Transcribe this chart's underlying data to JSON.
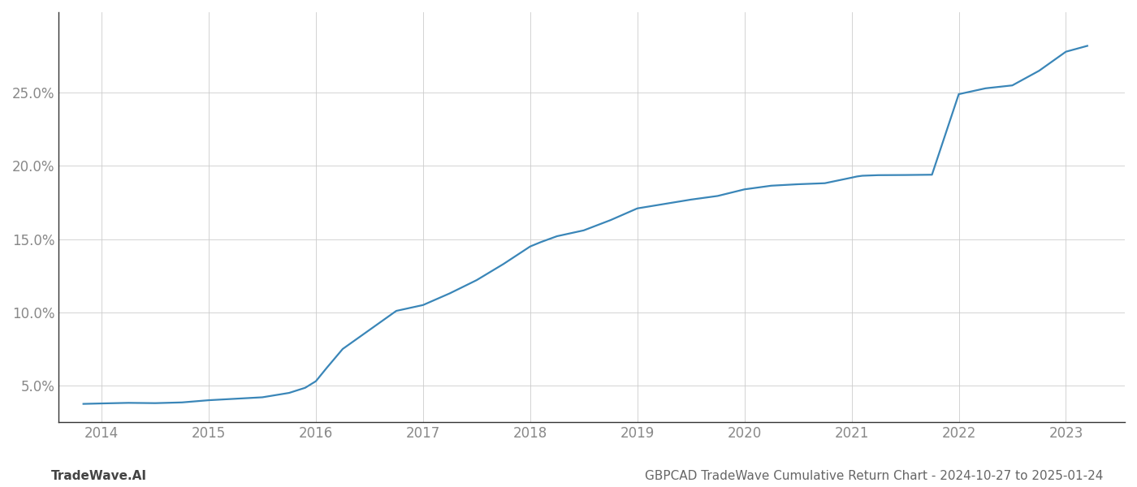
{
  "title": "GBPCAD TradeWave Cumulative Return Chart - 2024-10-27 to 2025-01-24",
  "watermark": "TradeWave.AI",
  "line_color": "#3a86b8",
  "background_color": "#ffffff",
  "grid_color": "#cccccc",
  "x_values": [
    2013.83,
    2014.0,
    2014.25,
    2014.5,
    2014.75,
    2015.0,
    2015.25,
    2015.5,
    2015.75,
    2015.9,
    2016.0,
    2016.1,
    2016.25,
    2016.5,
    2016.75,
    2017.0,
    2017.25,
    2017.5,
    2017.75,
    2018.0,
    2018.1,
    2018.25,
    2018.5,
    2018.75,
    2019.0,
    2019.25,
    2019.5,
    2019.75,
    2020.0,
    2020.25,
    2020.5,
    2020.75,
    2021.0,
    2021.05,
    2021.1,
    2021.25,
    2021.5,
    2021.75,
    2022.0,
    2022.25,
    2022.5,
    2022.75,
    2023.0,
    2023.2
  ],
  "y_values": [
    3.75,
    3.78,
    3.82,
    3.8,
    3.85,
    4.0,
    4.1,
    4.2,
    4.5,
    4.85,
    5.3,
    6.2,
    7.5,
    8.8,
    10.1,
    10.5,
    11.3,
    12.2,
    13.3,
    14.5,
    14.8,
    15.2,
    15.6,
    16.3,
    17.1,
    17.4,
    17.7,
    17.95,
    18.4,
    18.65,
    18.75,
    18.82,
    19.2,
    19.28,
    19.33,
    19.37,
    19.38,
    19.4,
    24.9,
    25.3,
    25.5,
    26.5,
    27.8,
    28.2
  ],
  "xlim": [
    2013.6,
    2023.55
  ],
  "ylim": [
    2.5,
    30.5
  ],
  "xticks": [
    2014,
    2015,
    2016,
    2017,
    2018,
    2019,
    2020,
    2021,
    2022,
    2023
  ],
  "yticks": [
    5.0,
    10.0,
    15.0,
    20.0,
    25.0
  ],
  "line_width": 1.6,
  "tick_label_color": "#888888",
  "title_color": "#666666",
  "watermark_color": "#444444",
  "title_fontsize": 11,
  "watermark_fontsize": 11,
  "tick_fontsize": 12,
  "left_spine_color": "#333333"
}
